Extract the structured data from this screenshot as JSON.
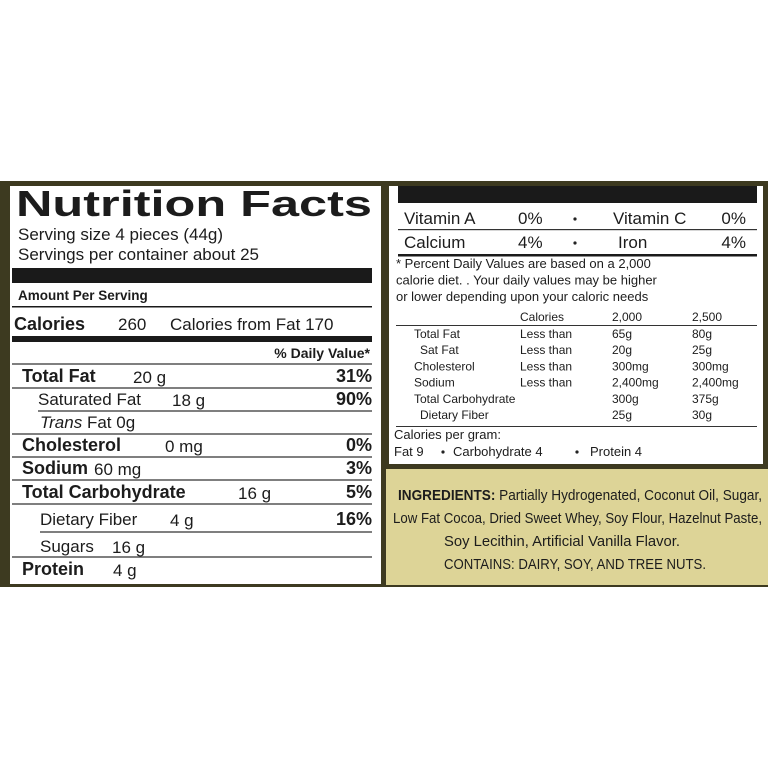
{
  "nutrition_facts": {
    "title": "Nutrition Facts",
    "serving_size": "Serving size 4 pieces (44g)",
    "servings": "Servings per container about 25",
    "amount_per_serving": "Amount Per Serving",
    "calories_label": "Calories",
    "calories_value": "260",
    "calories_from_fat": "Calories from Fat 170",
    "daily_value_header": "% Daily Value*",
    "rows": [
      {
        "name": "Total Fat",
        "amount": "20 g",
        "dv": "31%"
      },
      {
        "name": "Saturated Fat",
        "amount": "18 g",
        "dv": "90%"
      },
      {
        "name_prefix": "Trans",
        "name": "Fat",
        "amount": "0g"
      },
      {
        "name": "Cholesterol",
        "amount": "0 mg",
        "dv": "0%"
      },
      {
        "name": "Sodium",
        "amount": "60 mg",
        "dv": "3%"
      },
      {
        "name": "Total Carbohydrate",
        "amount": "16 g",
        "dv": "5%"
      },
      {
        "name": "Dietary Fiber",
        "amount": "4 g",
        "dv": "16%"
      },
      {
        "name": "Sugars",
        "amount": "16 g"
      },
      {
        "name": "Protein",
        "amount": "4 g"
      }
    ]
  },
  "vitamins": [
    [
      "Vitamin A",
      "0%",
      "Vitamin C",
      "0%"
    ],
    [
      "Calcium",
      "4%",
      "Iron",
      "4%"
    ]
  ],
  "footnote": [
    "* Percent Daily Values are based on a 2,000",
    "calorie diet. . Your daily values may be higher",
    "or lower depending upon your caloric needs"
  ],
  "reference_table": {
    "header": {
      "label": "Calories",
      "values": [
        "2,000",
        "2,500"
      ]
    },
    "rows": [
      {
        "name": "Total Fat",
        "limit": "Less than",
        "values": [
          "65g",
          "80g"
        ]
      },
      {
        "name": "Sat Fat",
        "limit": "Less than",
        "values": [
          "20g",
          "25g"
        ]
      },
      {
        "name": "Cholesterol",
        "limit": "Less than",
        "values": [
          "300mg",
          "300mg"
        ]
      },
      {
        "name": "Sodium",
        "limit": "Less than",
        "values": [
          "2,400mg",
          "2,400mg"
        ]
      },
      {
        "name": "Total Carbohydrate",
        "values": [
          "300g",
          "375g"
        ]
      },
      {
        "name": "Dietary Fiber",
        "values": [
          "25g",
          "30g"
        ]
      }
    ]
  },
  "calories_per_gram": {
    "label": "Calories per gram:",
    "items": [
      "Fat 9",
      "Carbohydrate 4",
      "Protein 4"
    ]
  },
  "ingredients": {
    "label": "INGREDIENTS:",
    "lines": [
      "Partially Hydrogenated, Coconut Oil, Sugar,",
      "Low Fat Cocoa, Dried Sweet Whey, Soy Flour, Hazelnut Paste,",
      "Soy Lecithin, Artificial Vanilla Flavor."
    ],
    "contains": "CONTAINS: DAIRY, SOY, AND TREE NUTS."
  }
}
